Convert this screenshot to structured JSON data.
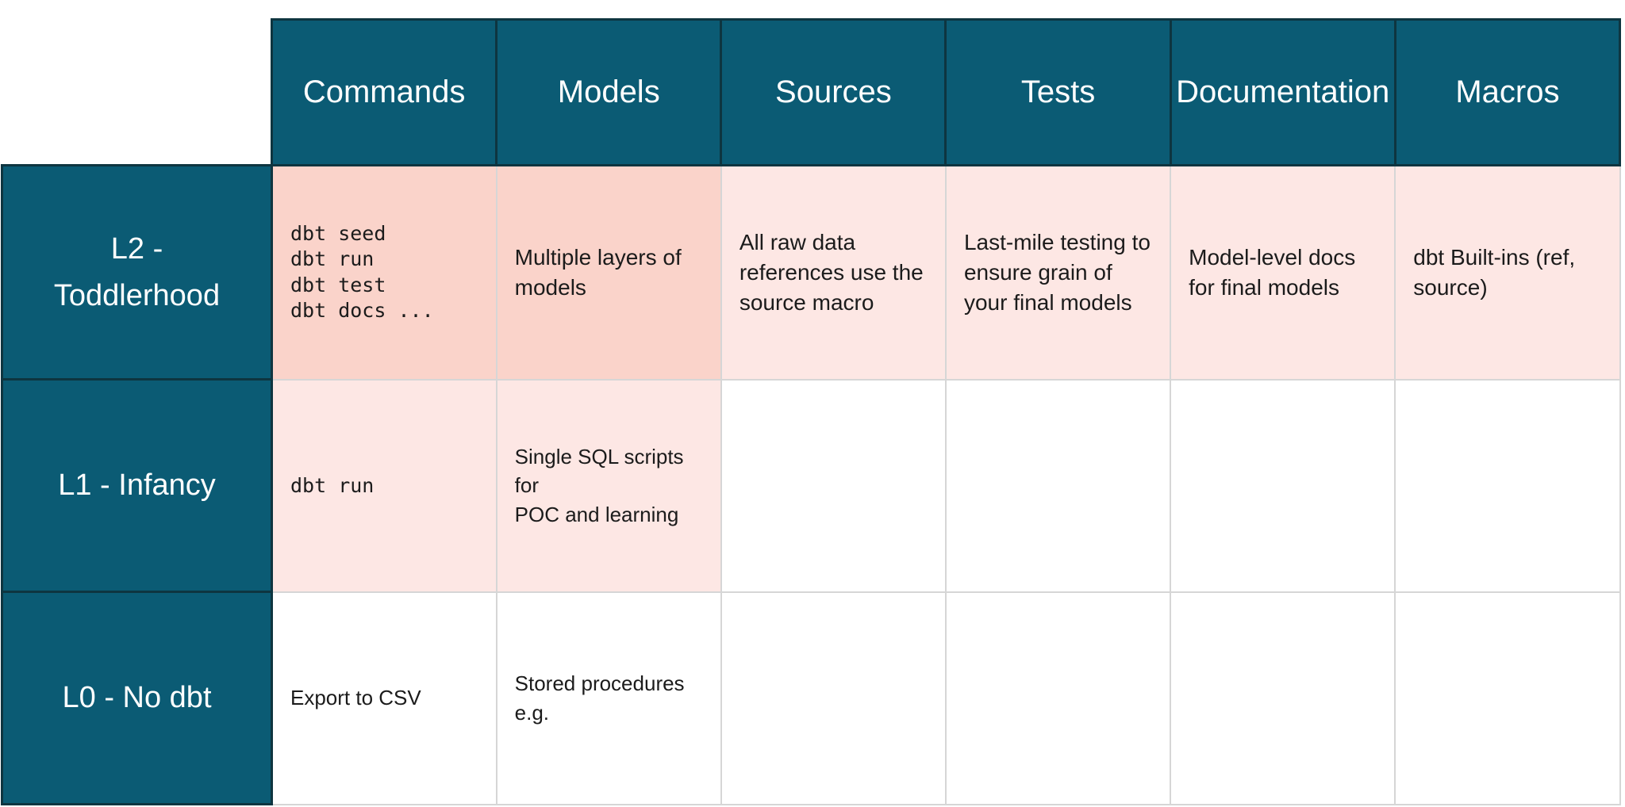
{
  "colors": {
    "teal": "#0B5B74",
    "border_dark": "#0E3540",
    "cell_strong": "#FAD3CA",
    "cell_soft": "#FDE7E4",
    "border_light": "#D6D6D6",
    "header_text": "#FFFFFF",
    "body_text": "#1B1B1B",
    "page_bg": "#FFFFFF"
  },
  "table": {
    "columns": [
      "Commands",
      "Models",
      "Sources",
      "Tests",
      "Documentation",
      "Macros"
    ],
    "rows": [
      {
        "label": "L2 -\nToddlerhood",
        "cells": [
          "dbt seed\ndbt run\ndbt test\ndbt docs ...",
          "Multiple layers of\nmodels",
          "All raw data\nreferences use the\nsource macro",
          "Last-mile testing to\nensure grain of\nyour final models",
          "Model-level docs\nfor final models",
          "dbt Built-ins (ref,\nsource)"
        ]
      },
      {
        "label": "L1 - Infancy",
        "cells": [
          "dbt run",
          "Single SQL scripts for\nPOC and learning",
          "",
          "",
          "",
          ""
        ]
      },
      {
        "label": "L0 - No dbt",
        "cells": [
          "Export to CSV",
          "Stored procedures\ne.g.",
          "",
          "",
          "",
          ""
        ]
      }
    ]
  }
}
